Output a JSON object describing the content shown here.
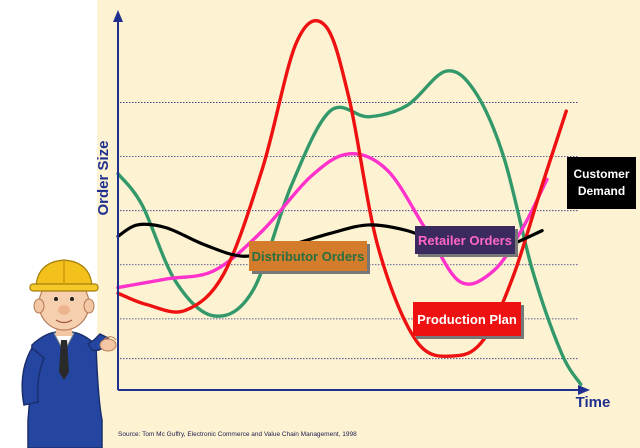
{
  "chart_data": {
    "type": "line",
    "ylabel": "Order Size",
    "xlabel": "Time",
    "grid": "horizontal dotted",
    "series": [
      {
        "name": "Customer Demand",
        "color": "#000000",
        "points": [
          [
            0,
            0.54
          ],
          [
            0.04,
            0.58
          ],
          [
            0.1,
            0.57
          ],
          [
            0.18,
            0.51
          ],
          [
            0.26,
            0.47
          ],
          [
            0.34,
            0.5
          ],
          [
            0.44,
            0.55
          ],
          [
            0.52,
            0.58
          ],
          [
            0.6,
            0.56
          ],
          [
            0.66,
            0.52
          ],
          [
            0.74,
            0.48
          ],
          [
            0.8,
            0.5
          ],
          [
            0.88,
            0.56
          ]
        ]
      },
      {
        "name": "Retailer Orders",
        "color": "#ff33cc",
        "points": [
          [
            0,
            0.36
          ],
          [
            0.1,
            0.39
          ],
          [
            0.2,
            0.42
          ],
          [
            0.3,
            0.56
          ],
          [
            0.4,
            0.75
          ],
          [
            0.48,
            0.83
          ],
          [
            0.56,
            0.77
          ],
          [
            0.64,
            0.56
          ],
          [
            0.71,
            0.38
          ],
          [
            0.78,
            0.42
          ],
          [
            0.84,
            0.57
          ],
          [
            0.89,
            0.74
          ]
        ]
      },
      {
        "name": "Distributor Orders",
        "color": "#33996b",
        "points": [
          [
            0,
            0.76
          ],
          [
            0.05,
            0.65
          ],
          [
            0.12,
            0.38
          ],
          [
            0.2,
            0.26
          ],
          [
            0.28,
            0.35
          ],
          [
            0.36,
            0.72
          ],
          [
            0.44,
            0.98
          ],
          [
            0.52,
            0.96
          ],
          [
            0.6,
            1.0
          ],
          [
            0.68,
            1.12
          ],
          [
            0.74,
            1.05
          ],
          [
            0.8,
            0.82
          ],
          [
            0.86,
            0.42
          ],
          [
            0.92,
            0.13
          ],
          [
            0.96,
            0.02
          ]
        ]
      },
      {
        "name": "Production Plan",
        "color": "#ee1111",
        "points": [
          [
            0,
            0.34
          ],
          [
            0.06,
            0.3
          ],
          [
            0.14,
            0.28
          ],
          [
            0.22,
            0.41
          ],
          [
            0.3,
            0.78
          ],
          [
            0.37,
            1.22
          ],
          [
            0.43,
            1.28
          ],
          [
            0.48,
            1.02
          ],
          [
            0.54,
            0.5
          ],
          [
            0.62,
            0.17
          ],
          [
            0.7,
            0.12
          ],
          [
            0.76,
            0.18
          ],
          [
            0.82,
            0.4
          ],
          [
            0.88,
            0.72
          ],
          [
            0.93,
            0.98
          ]
        ]
      }
    ],
    "labels": [
      {
        "text": "Customer Demand",
        "line1": "Customer",
        "line2": "Demand"
      },
      {
        "text": "Retailer Orders"
      },
      {
        "text": "Distributor Orders"
      },
      {
        "text": "Production Plan"
      }
    ]
  },
  "source": "Source: Tom Mc Guffry, Electronic Commerce and Value Chain Management, 1998",
  "colors": {
    "panel_bg": "#fdf3d2",
    "axis": "#1f2f8f",
    "grid": "#2a2a80"
  }
}
